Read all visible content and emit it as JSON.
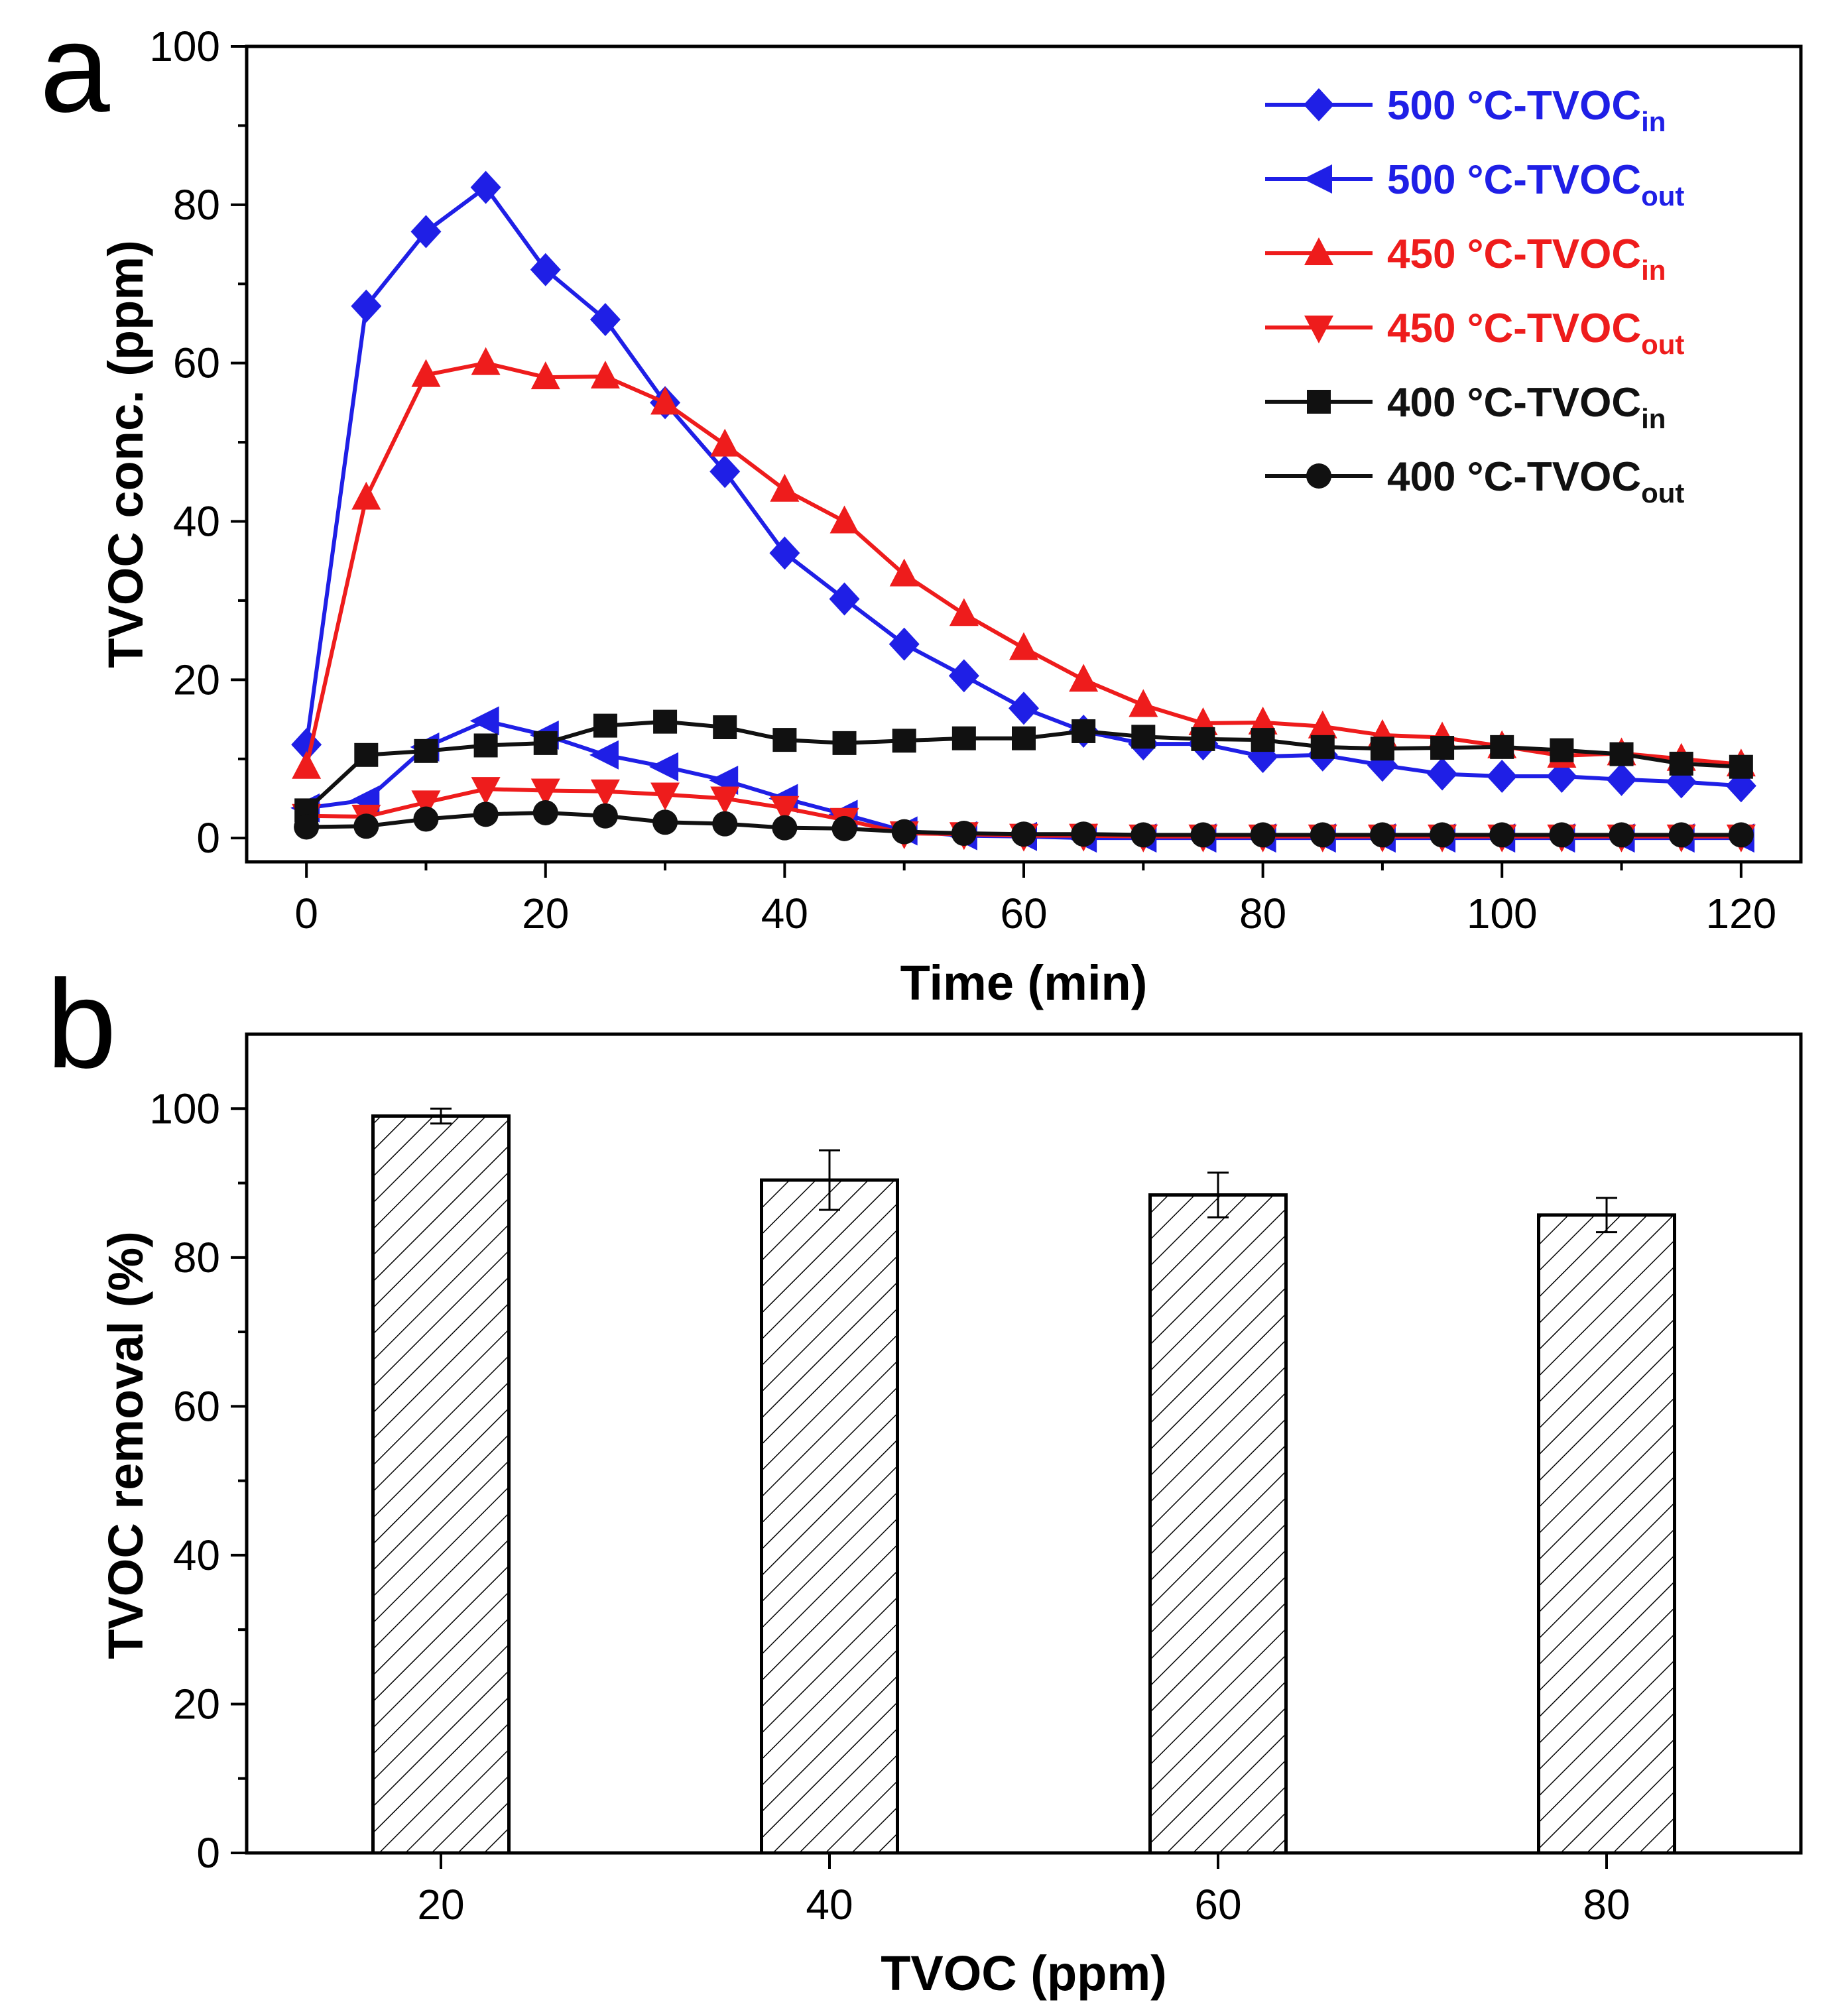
{
  "figure": {
    "panel_a_label": "a",
    "panel_b_label": "b"
  },
  "chart_data": [
    {
      "panel": "a",
      "type": "line",
      "xlabel": "Time (min)",
      "ylabel": "TVOC conc. (ppm)",
      "xlim": [
        -5,
        125
      ],
      "ylim": [
        -3,
        100
      ],
      "xticks": [
        0,
        20,
        40,
        60,
        80,
        100,
        120
      ],
      "yticks": [
        0,
        20,
        40,
        60,
        80,
        100
      ],
      "legend_position": "top-right",
      "series": [
        {
          "name": "500 °C-TVOC",
          "sub": "in",
          "color": "#1f1fe6",
          "marker": "diamond",
          "x": [
            0,
            5,
            10,
            15,
            20,
            25,
            30,
            35,
            40,
            45,
            50,
            55,
            60,
            65,
            70,
            75,
            80,
            85,
            90,
            95,
            100,
            105,
            110,
            115,
            120
          ],
          "values": [
            11.8,
            67.2,
            76.6,
            82.2,
            71.8,
            65.5,
            55,
            46.3,
            36,
            30.2,
            24.5,
            20.5,
            16.4,
            13.5,
            11.9,
            11.9,
            10.3,
            10.5,
            9.2,
            8.1,
            7.8,
            7.8,
            7.4,
            7.1,
            6.6
          ]
        },
        {
          "name": "500 °C-TVOC",
          "sub": "out",
          "color": "#1f1fe6",
          "marker": "triangle-left",
          "x": [
            0,
            5,
            10,
            15,
            20,
            25,
            30,
            35,
            40,
            45,
            50,
            55,
            60,
            65,
            70,
            75,
            80,
            85,
            90,
            95,
            100,
            105,
            110,
            115,
            120
          ],
          "values": [
            3.8,
            4.8,
            11.5,
            14.8,
            13,
            10.5,
            9,
            7.3,
            5,
            3,
            0.9,
            0.3,
            0.2,
            0,
            0,
            0,
            0,
            0,
            0,
            0,
            0,
            0,
            0,
            0,
            0
          ]
        },
        {
          "name": "450 °C-TVOC",
          "sub": "in",
          "color": "#ee1c1c",
          "marker": "triangle-up",
          "x": [
            0,
            5,
            10,
            15,
            20,
            25,
            30,
            35,
            40,
            45,
            50,
            55,
            60,
            65,
            70,
            75,
            80,
            85,
            90,
            95,
            100,
            105,
            110,
            115,
            120
          ],
          "values": [
            9,
            43,
            58.5,
            60,
            58.2,
            58.3,
            55,
            49.7,
            44,
            40,
            33.3,
            28.3,
            24,
            20,
            16.8,
            14.5,
            14.6,
            14.1,
            13,
            12.7,
            11.6,
            10.4,
            10.7,
            10,
            9.3
          ]
        },
        {
          "name": "450 °C-TVOC",
          "sub": "out",
          "color": "#ee1c1c",
          "marker": "triangle-down",
          "x": [
            0,
            5,
            10,
            15,
            20,
            25,
            30,
            35,
            40,
            45,
            50,
            55,
            60,
            65,
            70,
            75,
            80,
            85,
            90,
            95,
            100,
            105,
            110,
            115,
            120
          ],
          "values": [
            2.8,
            2.7,
            4.5,
            6.2,
            6,
            5.9,
            5.5,
            5,
            3.8,
            2.3,
            0.6,
            0.5,
            0.3,
            0.3,
            0.2,
            0.2,
            0.2,
            0.2,
            0.2,
            0.2,
            0.2,
            0.2,
            0.2,
            0.2,
            0.2
          ]
        },
        {
          "name": "400 °C-TVOC",
          "sub": "in",
          "color": "#111111",
          "marker": "square",
          "x": [
            0,
            5,
            10,
            15,
            20,
            25,
            30,
            35,
            40,
            45,
            50,
            55,
            60,
            65,
            70,
            75,
            80,
            85,
            90,
            95,
            100,
            105,
            110,
            115,
            120
          ],
          "values": [
            3.5,
            10.5,
            11,
            11.7,
            12,
            14.2,
            14.7,
            14,
            12.4,
            12,
            12.3,
            12.6,
            12.6,
            13.5,
            12.8,
            12.5,
            12.4,
            11.5,
            11.3,
            11.4,
            11.5,
            11.1,
            10.6,
            9.4,
            9
          ]
        },
        {
          "name": "400 °C-TVOC",
          "sub": "out",
          "color": "#111111",
          "marker": "circle",
          "x": [
            0,
            5,
            10,
            15,
            20,
            25,
            30,
            35,
            40,
            45,
            50,
            55,
            60,
            65,
            70,
            75,
            80,
            85,
            90,
            95,
            100,
            105,
            110,
            115,
            120
          ],
          "values": [
            1.4,
            1.5,
            2.4,
            3,
            3.2,
            2.8,
            2,
            1.8,
            1.3,
            1.2,
            0.8,
            0.6,
            0.5,
            0.5,
            0.4,
            0.4,
            0.4,
            0.4,
            0.4,
            0.4,
            0.4,
            0.4,
            0.4,
            0.4,
            0.4
          ]
        }
      ]
    },
    {
      "panel": "b",
      "type": "bar",
      "xlabel": "TVOC (ppm)",
      "ylabel": "TVOC removal (%)",
      "categories": [
        "20",
        "40",
        "60",
        "80"
      ],
      "values": [
        99,
        90.4,
        88.4,
        85.7
      ],
      "errors": [
        1,
        4,
        3,
        2.3
      ],
      "ylim": [
        0,
        110
      ],
      "yticks": [
        0,
        20,
        40,
        60,
        80,
        100
      ],
      "bar_fill": "hatched"
    }
  ]
}
